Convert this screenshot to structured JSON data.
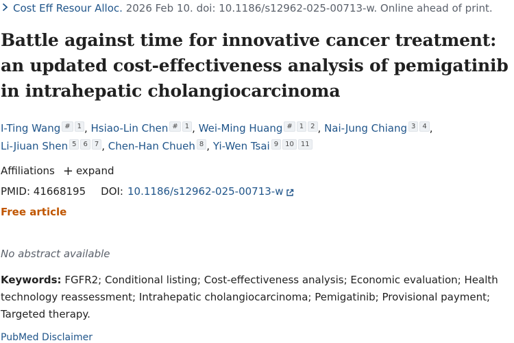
{
  "citation": {
    "journal": "Cost Eff Resour Alloc.",
    "details": "2026 Feb 10. doi: 10.1186/s12962-025-00713-w. Online ahead of print."
  },
  "title": "Battle against time for innovative cancer treatment: an updated cost-effectiveness analysis of pemigatinib in intrahepatic cholangiocarcinoma",
  "authors": [
    {
      "name": "I-Ting Wang",
      "sups": [
        "#",
        "1"
      ]
    },
    {
      "name": "Hsiao-Lin Chen",
      "sups": [
        "#",
        "1"
      ]
    },
    {
      "name": "Wei-Ming Huang",
      "sups": [
        "#",
        "1",
        "2"
      ]
    },
    {
      "name": "Nai-Jung Chiang",
      "sups": [
        "3",
        "4"
      ]
    },
    {
      "name": "Li-Jiuan Shen",
      "sups": [
        "5",
        "6",
        "7"
      ]
    },
    {
      "name": "Chen-Han Chueh",
      "sups": [
        "8"
      ]
    },
    {
      "name": "Yi-Wen Tsai",
      "sups": [
        "9",
        "10",
        "11"
      ]
    }
  ],
  "affiliations": {
    "label": "Affiliations",
    "expand": "expand"
  },
  "ids": {
    "pmid_label": "PMID:",
    "pmid": "41668195",
    "doi_label": "DOI:",
    "doi": "10.1186/s12962-025-00713-w"
  },
  "free_article": "Free article",
  "no_abstract": "No abstract available",
  "keywords": {
    "label": "Keywords:",
    "text": "FGFR2; Conditional listing; Cost-effectiveness analysis; Economic evaluation; Health technology reassessment; Intrahepatic cholangiocarcinoma; Pemigatinib; Provisional payment; Targeted therapy."
  },
  "disclaimer": "PubMed Disclaimer",
  "colors": {
    "link": "#20558a",
    "free": "#c05600",
    "muted": "#5b616b"
  }
}
